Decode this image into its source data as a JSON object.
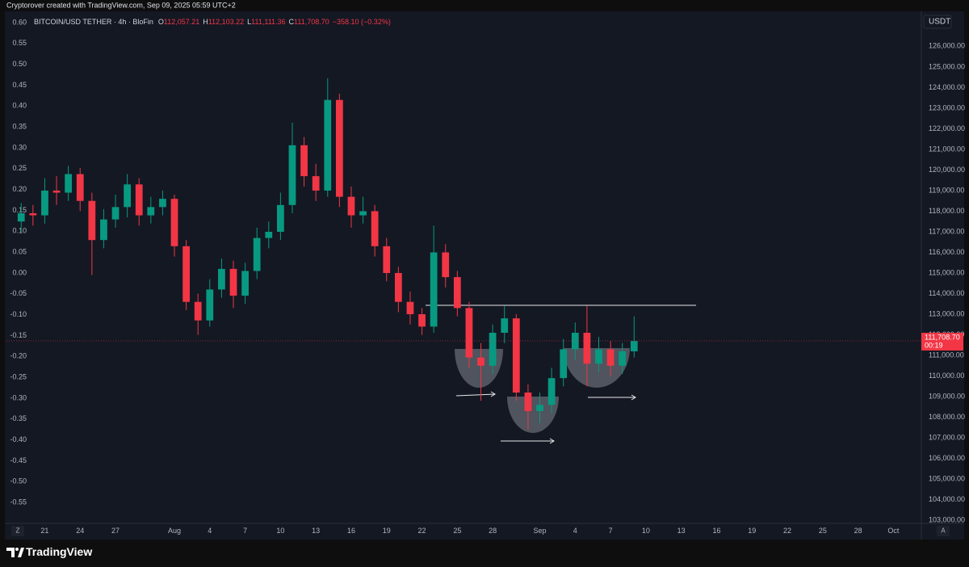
{
  "chart_data": {
    "type": "candlestick",
    "credit": "Cryptorover created with TradingView.com, Sep 09, 2025 05:59 UTC+2",
    "title": "BITCOIN/USD TETHER · 4h · BloFin",
    "ohlc_legend": [
      {
        "label": "O",
        "value": "112,057.21"
      },
      {
        "label": "H",
        "value": "112,103.22"
      },
      {
        "label": "L",
        "value": "111,111.36"
      },
      {
        "label": "C",
        "value": "111,708.70"
      }
    ],
    "change": "−358.10 (−0.32%)",
    "currency": "USDT",
    "x": [
      19,
      20,
      21,
      22,
      23,
      24,
      25,
      26,
      27,
      28,
      29,
      30,
      31,
      32,
      33,
      34,
      35,
      36,
      37,
      38,
      39,
      40,
      41,
      42,
      43,
      44,
      45,
      46,
      47,
      48,
      49,
      50,
      51,
      52,
      53,
      54,
      55,
      56,
      57,
      58,
      59,
      60,
      61,
      62,
      63,
      64,
      65,
      66,
      67,
      68,
      69,
      70,
      71
    ],
    "series": [
      {
        "up_color": "#089981",
        "down_color": "#f23645",
        "open": [
          117500,
          117900,
          117800,
          119000,
          118900,
          119800,
          118500,
          116600,
          117600,
          118200,
          119300,
          117800,
          118200,
          118600,
          116300,
          113600,
          112700,
          114200,
          115200,
          113900,
          115100,
          116700,
          117000,
          118300,
          121200,
          119700,
          119000,
          123400,
          118700,
          117800,
          118000,
          116300,
          115000,
          113600,
          113000,
          112400,
          116000,
          114800,
          113300,
          110900,
          110500,
          112100,
          112800,
          109200,
          108300,
          108600,
          109900,
          111300,
          112100,
          110600,
          111300,
          110500,
          111200
        ],
        "high": [
          118400,
          118300,
          119600,
          119700,
          120200,
          120100,
          118900,
          118100,
          118800,
          119800,
          119600,
          118700,
          119000,
          118800,
          116600,
          114000,
          114700,
          115700,
          115600,
          115500,
          117200,
          117500,
          118900,
          122300,
          121600,
          120300,
          124450,
          123700,
          119200,
          118700,
          118300,
          116700,
          115300,
          114100,
          113300,
          117300,
          116400,
          115100,
          113600,
          111600,
          112500,
          113400,
          113000,
          109600,
          109200,
          110400,
          111800,
          112600,
          113400,
          111900,
          111700,
          111600,
          112900
        ],
        "low": [
          117000,
          117300,
          117400,
          118300,
          118500,
          118000,
          114900,
          116200,
          117200,
          117700,
          117300,
          117400,
          117800,
          115800,
          113200,
          112000,
          112400,
          113800,
          113300,
          113500,
          114700,
          116200,
          116600,
          117900,
          119200,
          118500,
          118700,
          118200,
          117200,
          117400,
          115800,
          114600,
          113100,
          112500,
          112000,
          112100,
          114300,
          112900,
          110400,
          108800,
          110100,
          111600,
          108800,
          107400,
          107700,
          108200,
          109500,
          110800,
          109500,
          110200,
          110000,
          110100,
          110900
        ],
        "close": [
          117900,
          117800,
          119000,
          118900,
          119800,
          118500,
          116600,
          117600,
          118200,
          119300,
          117800,
          118200,
          118600,
          116300,
          113600,
          112700,
          114200,
          115200,
          113900,
          115100,
          116700,
          117000,
          118300,
          121200,
          119700,
          119000,
          123400,
          118700,
          117800,
          118000,
          116300,
          115000,
          113600,
          113000,
          112400,
          116000,
          114800,
          113300,
          110900,
          110500,
          112100,
          112800,
          109200,
          108300,
          108600,
          109900,
          111300,
          112100,
          110600,
          111300,
          110500,
          111200,
          111700
        ]
      }
    ],
    "xlim": [
      17.75,
      95.3
    ],
    "xticks": [
      21,
      24,
      27,
      {
        "value": 32,
        "label": "Aug"
      },
      {
        "value": 35,
        "label": "4"
      },
      {
        "value": 38,
        "label": "7"
      },
      {
        "value": 41,
        "label": "10"
      },
      {
        "value": 44,
        "label": "13"
      },
      {
        "value": 47,
        "label": "16"
      },
      {
        "value": 50,
        "label": "19"
      },
      {
        "value": 53,
        "label": "22"
      },
      {
        "value": 56,
        "label": "25"
      },
      {
        "value": 59,
        "label": "28"
      },
      {
        "value": 63,
        "label": "Sep"
      },
      {
        "value": 66,
        "label": "4"
      },
      {
        "value": 69,
        "label": "7"
      },
      {
        "value": 72,
        "label": "10"
      },
      {
        "value": 75,
        "label": "13"
      },
      {
        "value": 78,
        "label": "16"
      },
      {
        "value": 81,
        "label": "19"
      },
      {
        "value": 84,
        "label": "22"
      },
      {
        "value": 87,
        "label": "25"
      },
      {
        "value": 90,
        "label": "28"
      },
      {
        "value": 93,
        "label": "Oct"
      }
    ],
    "ylim": [
      102850,
      127700
    ],
    "yticks": [
      {
        "value": 126000,
        "label": "126,000.00"
      },
      {
        "value": 125000,
        "label": "125,000.00"
      },
      {
        "value": 124000,
        "label": "124,000.00"
      },
      {
        "value": 123000,
        "label": "123,000.00"
      },
      {
        "value": 122000,
        "label": "122,000.00"
      },
      {
        "value": 121000,
        "label": "121,000.00"
      },
      {
        "value": 120000,
        "label": "120,000.00"
      },
      {
        "value": 119000,
        "label": "119,000.00"
      },
      {
        "value": 118000,
        "label": "118,000.00"
      },
      {
        "value": 117000,
        "label": "117,000.00"
      },
      {
        "value": 116000,
        "label": "116,000.00"
      },
      {
        "value": 115000,
        "label": "115,000.00"
      },
      {
        "value": 114000,
        "label": "114,000.00"
      },
      {
        "value": 113000,
        "label": "113,000.00"
      },
      {
        "value": 112000,
        "label": "112,000.00"
      },
      {
        "value": 111000,
        "label": "111,000.00"
      },
      {
        "value": 110000,
        "label": "110,000.00"
      },
      {
        "value": 109000,
        "label": "109,000.00"
      },
      {
        "value": 108000,
        "label": "108,000.00"
      },
      {
        "value": 107000,
        "label": "107,000.00"
      },
      {
        "value": 106000,
        "label": "106,000.00"
      },
      {
        "value": 105000,
        "label": "105,000.00"
      },
      {
        "value": 104000,
        "label": "104,000.00"
      },
      {
        "value": 103000,
        "label": "103,000.00"
      }
    ],
    "y2lim": [
      -0.6,
      0.627
    ],
    "y2ticks": [
      {
        "value": 0.6,
        "label": "0.60"
      },
      0.55,
      {
        "value": 0.5,
        "label": "0.50"
      },
      0.45,
      {
        "value": 0.4,
        "label": "0.40"
      },
      0.35,
      {
        "value": 0.3,
        "label": "0.30"
      },
      0.25,
      {
        "value": 0.2,
        "label": "0.20"
      },
      0.15,
      {
        "value": 0.1,
        "label": "0.10"
      },
      0.05,
      {
        "value": 0,
        "label": "0.00"
      },
      -0.05,
      {
        "value": -0.1,
        "label": "-0.10"
      },
      -0.15,
      {
        "value": -0.2,
        "label": "-0.20"
      },
      -0.25,
      {
        "value": -0.3,
        "label": "-0.30"
      },
      -0.35,
      {
        "value": -0.4,
        "label": "-0.40"
      },
      -0.45,
      {
        "value": -0.5,
        "label": "-0.50"
      },
      -0.55
    ],
    "last_price": {
      "value": 111708.7,
      "label": "111,708.70"
    },
    "countdown": "00:19",
    "grid": false,
    "scale_buttons": [
      "Z",
      "A"
    ],
    "brand": "TradingView"
  }
}
